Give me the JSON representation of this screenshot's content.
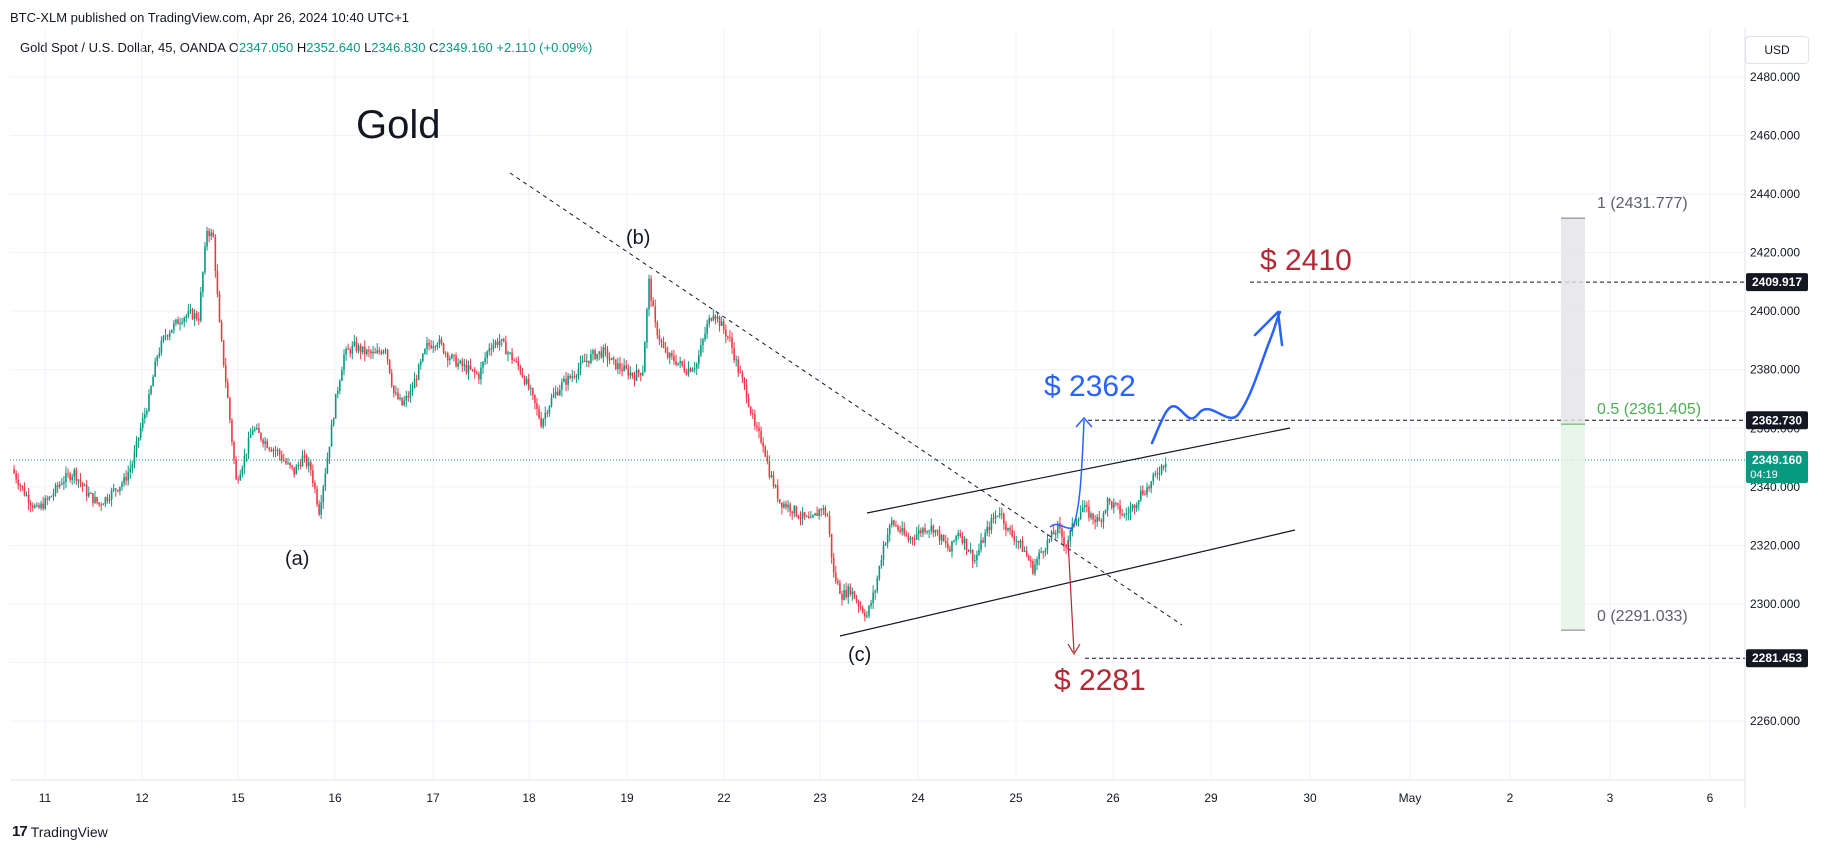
{
  "publisher_line": "BTC-XLM published on TradingView.com, Apr 26, 2024 10:40 UTC+1",
  "symbol": {
    "name": "Gold Spot / U.S. Dollar, 45, OANDA",
    "open_label": "O",
    "open": "2347.050",
    "high_label": "H",
    "high": "2352.640",
    "low_label": "L",
    "low": "2346.830",
    "close_label": "C",
    "close": "2349.160",
    "change": "+2.110 (+0.09%)"
  },
  "currency": "USD",
  "footer_brand": "TradingView",
  "colors": {
    "up": "#089981",
    "down": "#f23645",
    "red_text": "#b22833",
    "blue_text": "#2962ff",
    "green_text": "#4caf50",
    "gray_text": "#5d606b"
  },
  "chart_data": {
    "type": "candlestick",
    "y_ticks": [
      "2480.000",
      "2460.000",
      "2440.000",
      "2420.000",
      "2400.000",
      "2380.000",
      "2360.000",
      "2340.000",
      "2320.000",
      "2300.000",
      "2280.000",
      "2260.000"
    ],
    "y_range": [
      2248,
      2490
    ],
    "x_ticks": [
      "11",
      "12",
      "15",
      "16",
      "17",
      "18",
      "19",
      "22",
      "23",
      "24",
      "25",
      "26",
      "29",
      "30",
      "May",
      "2",
      "3",
      "6"
    ],
    "price_labels": {
      "target_top": "2409.917",
      "target_mid": "2362.730",
      "current": "2349.160",
      "countdown": "04:19",
      "target_low": "2281.453"
    },
    "annotations": {
      "title": "Gold",
      "wave_a": "(a)",
      "wave_b": "(b)",
      "wave_c": "(c)",
      "target_2410": "$ 2410",
      "target_2362": "$ 2362",
      "target_2281": "$ 2281",
      "fib_1": "1 (2431.777)",
      "fib_05": "0.5 (2361.405)",
      "fib_0": "0 (2291.033)"
    },
    "fib_levels": [
      2431.777,
      2361.405,
      2291.033
    ],
    "close_path": [
      [
        0,
        2346
      ],
      [
        6,
        2338
      ],
      [
        12,
        2332
      ],
      [
        18,
        2336
      ],
      [
        24,
        2342
      ],
      [
        30,
        2345
      ],
      [
        36,
        2338
      ],
      [
        42,
        2334
      ],
      [
        48,
        2338
      ],
      [
        54,
        2342
      ],
      [
        58,
        2348
      ],
      [
        62,
        2360
      ],
      [
        66,
        2370
      ],
      [
        70,
        2385
      ],
      [
        74,
        2392
      ],
      [
        78,
        2395
      ],
      [
        82,
        2398
      ],
      [
        86,
        2399
      ],
      [
        90,
        2398
      ],
      [
        94,
        2428
      ],
      [
        97,
        2425
      ],
      [
        100,
        2395
      ],
      [
        104,
        2370
      ],
      [
        108,
        2342
      ],
      [
        112,
        2350
      ],
      [
        116,
        2360
      ],
      [
        120,
        2357
      ],
      [
        124,
        2354
      ],
      [
        128,
        2352
      ],
      [
        132,
        2348
      ],
      [
        136,
        2345
      ],
      [
        140,
        2350
      ],
      [
        144,
        2346
      ],
      [
        148,
        2332
      ],
      [
        152,
        2350
      ],
      [
        156,
        2370
      ],
      [
        160,
        2385
      ],
      [
        165,
        2388
      ],
      [
        170,
        2386
      ],
      [
        175,
        2385
      ],
      [
        180,
        2388
      ],
      [
        184,
        2372
      ],
      [
        188,
        2368
      ],
      [
        192,
        2372
      ],
      [
        196,
        2380
      ],
      [
        200,
        2388
      ],
      [
        205,
        2390
      ],
      [
        210,
        2385
      ],
      [
        215,
        2382
      ],
      [
        220,
        2380
      ],
      [
        225,
        2378
      ],
      [
        230,
        2388
      ],
      [
        235,
        2390
      ],
      [
        240,
        2385
      ],
      [
        245,
        2380
      ],
      [
        250,
        2372
      ],
      [
        255,
        2362
      ],
      [
        260,
        2370
      ],
      [
        265,
        2375
      ],
      [
        270,
        2378
      ],
      [
        275,
        2382
      ],
      [
        280,
        2385
      ],
      [
        285,
        2386
      ],
      [
        290,
        2382
      ],
      [
        295,
        2380
      ],
      [
        300,
        2378
      ],
      [
        304,
        2380
      ],
      [
        307,
        2410
      ],
      [
        310,
        2395
      ],
      [
        315,
        2385
      ],
      [
        320,
        2383
      ],
      [
        325,
        2380
      ],
      [
        330,
        2382
      ],
      [
        335,
        2395
      ],
      [
        338,
        2400
      ],
      [
        342,
        2395
      ],
      [
        346,
        2390
      ],
      [
        350,
        2380
      ],
      [
        354,
        2372
      ],
      [
        358,
        2360
      ],
      [
        362,
        2355
      ],
      [
        365,
        2345
      ],
      [
        370,
        2335
      ],
      [
        375,
        2333
      ],
      [
        380,
        2330
      ],
      [
        385,
        2328
      ],
      [
        390,
        2333
      ],
      [
        393,
        2330
      ],
      [
        396,
        2310
      ],
      [
        400,
        2303
      ],
      [
        404,
        2305
      ],
      [
        408,
        2300
      ],
      [
        412,
        2296
      ],
      [
        416,
        2305
      ],
      [
        420,
        2320
      ],
      [
        424,
        2328
      ],
      [
        428,
        2325
      ],
      [
        432,
        2322
      ],
      [
        436,
        2324
      ],
      [
        440,
        2326
      ],
      [
        444,
        2326
      ],
      [
        448,
        2322
      ],
      [
        452,
        2318
      ],
      [
        456,
        2325
      ],
      [
        460,
        2320
      ],
      [
        464,
        2315
      ],
      [
        468,
        2322
      ],
      [
        472,
        2328
      ],
      [
        476,
        2332
      ],
      [
        480,
        2325
      ],
      [
        484,
        2322
      ],
      [
        488,
        2318
      ],
      [
        492,
        2312
      ],
      [
        496,
        2318
      ],
      [
        500,
        2322
      ],
      [
        504,
        2326
      ],
      [
        508,
        2320
      ],
      [
        512,
        2328
      ],
      [
        516,
        2333
      ],
      [
        520,
        2330
      ],
      [
        524,
        2328
      ],
      [
        528,
        2335
      ],
      [
        532,
        2333
      ],
      [
        536,
        2330
      ],
      [
        540,
        2333
      ],
      [
        544,
        2338
      ],
      [
        548,
        2340
      ],
      [
        552,
        2345
      ],
      [
        556,
        2349
      ]
    ]
  }
}
